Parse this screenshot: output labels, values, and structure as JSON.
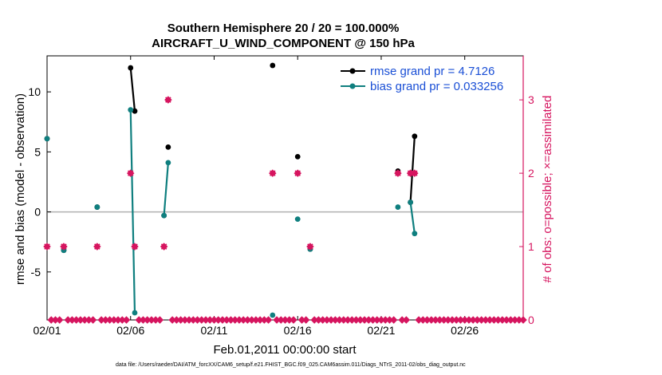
{
  "chart_data": {
    "type": "line",
    "title": "Southern Hemisphere 20 / 20 = 100.000%",
    "subtitle": "AIRCRAFT_U_WIND_COMPONENT @ 150 hPa",
    "xlabel": "Feb.01,2011 00:00:00 start",
    "ylabel_left": "rmse and bias (model - observation)",
    "ylabel_right": "# of obs: o=possible; ×=assimilated",
    "xlim": [
      1,
      29.5
    ],
    "ylim_left": [
      -9,
      13
    ],
    "ylim_right": [
      0,
      3.6
    ],
    "x_ticks": [
      1,
      6,
      11,
      16,
      21,
      26
    ],
    "x_tick_labels": [
      "02/01",
      "02/06",
      "02/11",
      "02/16",
      "02/21",
      "02/26"
    ],
    "y_ticks_left": [
      -5,
      0,
      5,
      10
    ],
    "y_tick_labels_left": [
      "-5",
      "0",
      "5",
      "10"
    ],
    "y_ticks_right": [
      0,
      1,
      2,
      3
    ],
    "y_tick_labels_right": [
      "0",
      "1",
      "2",
      "3"
    ],
    "legend_position": "top-right",
    "series": [
      {
        "name": "rmse grand pr = 4.7126",
        "color": "#000000",
        "x": [
          1.0,
          2.0,
          4.0,
          6.0,
          6.25,
          8.0,
          8.25,
          14.5,
          16.0,
          16.75,
          22.0,
          22.75,
          23.0
        ],
        "y": [
          6.1,
          -3.2,
          0.4,
          12.0,
          8.4,
          -0.3,
          5.4,
          12.2,
          4.6,
          -3.1,
          3.4,
          0.8,
          6.3
        ],
        "segments": [
          [
            6.0,
            6.25
          ],
          [
            22.75,
            23.0
          ]
        ]
      },
      {
        "name": "bias grand pr = 0.033256",
        "color": "#0f7f7f",
        "x": [
          1.0,
          2.0,
          4.0,
          6.0,
          6.25,
          8.0,
          8.25,
          14.5,
          16.0,
          16.75,
          22.0,
          22.75,
          23.0
        ],
        "y": [
          6.1,
          -3.2,
          0.4,
          8.5,
          -8.4,
          -0.3,
          4.1,
          -8.6,
          -0.6,
          -3.1,
          0.4,
          0.8,
          -1.8
        ],
        "segments": [
          [
            6.0,
            6.25
          ],
          [
            8.0,
            8.25
          ],
          [
            22.75,
            23.0
          ]
        ]
      },
      {
        "name": "possible",
        "color": "#d6155f",
        "axis": "right",
        "x": [
          1.0,
          2.0,
          4.0,
          6.0,
          6.25,
          8.0,
          8.25,
          14.5,
          16.0,
          16.75,
          22.0,
          22.75,
          23.0
        ],
        "y": [
          1,
          1,
          1,
          2,
          1,
          1,
          3,
          2,
          2,
          1,
          2,
          2,
          2
        ]
      },
      {
        "name": "assimilated",
        "color": "#d6155f",
        "axis": "right",
        "x": [
          1.0,
          2.0,
          4.0,
          6.0,
          6.25,
          8.0,
          8.25,
          14.5,
          16.0,
          16.75,
          22.0,
          22.75,
          23.0
        ],
        "y": [
          1,
          1,
          1,
          2,
          1,
          1,
          3,
          2,
          2,
          1,
          2,
          2,
          2
        ]
      }
    ],
    "zero_count_x_start": 1.0,
    "zero_count_x_end": 29.5,
    "zero_count_step": 0.25,
    "zero_line_color": "#b0b0b0"
  },
  "footnote": "data file: /Users/raeder/DAI/ATM_forcXX/CAM6_setup/f.e21.FHIST_BGC.f09_025.CAM6assim.011/Diags_NTrS_2011-02/obs_diag_output.nc"
}
